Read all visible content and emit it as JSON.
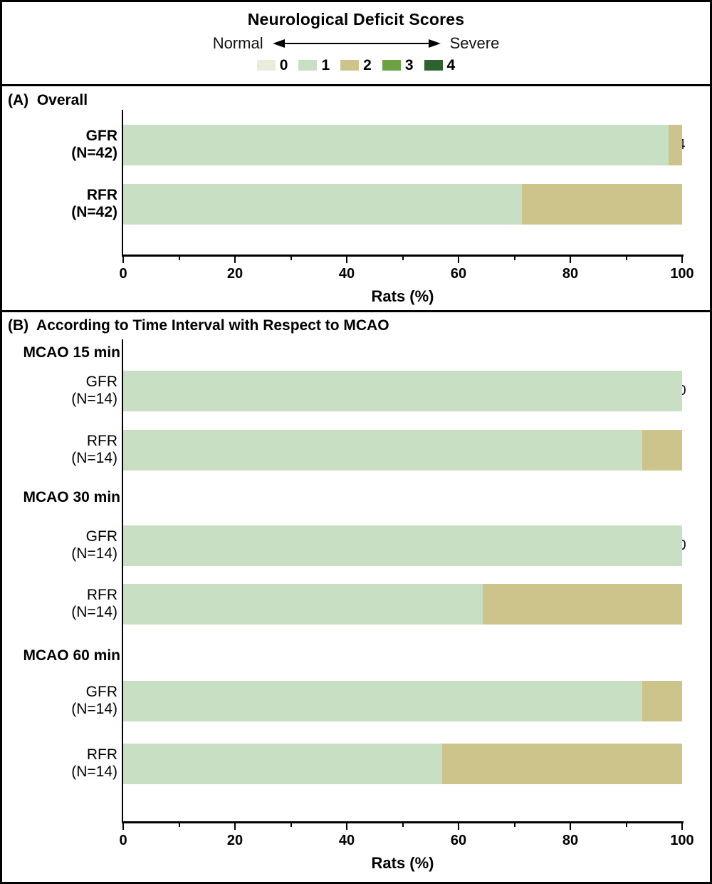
{
  "figure": {
    "title": "Neurological Deficit Scores",
    "scale_left": "Normal",
    "scale_right": "Severe",
    "legend": [
      {
        "score": "0",
        "color": "#e9ecdc"
      },
      {
        "score": "1",
        "color": "#c8dfc4"
      },
      {
        "score": "2",
        "color": "#ccc48b"
      },
      {
        "score": "3",
        "color": "#6aa244"
      },
      {
        "score": "4",
        "color": "#2e622f"
      }
    ]
  },
  "chart_data": [
    {
      "type": "bar",
      "orientation": "horizontal-stacked",
      "panel": "A",
      "title": "(A)  Overall",
      "xlabel": "Rats (%)",
      "xlim": [
        0,
        100
      ],
      "xticks": [
        0,
        20,
        40,
        60,
        80,
        100
      ],
      "minor_tick_step": 10,
      "series_labels": [
        "Score 1",
        "Score 2"
      ],
      "segment_colors": [
        "#c8dfc4",
        "#ccc48b"
      ],
      "rows": [
        {
          "label": "GFR",
          "sublabel": "(N=42)",
          "values": [
            97.6,
            2.4
          ],
          "value_labels": [
            "97.6",
            "2.4"
          ]
        },
        {
          "label": "RFR",
          "sublabel": "(N=42)",
          "values": [
            71.4,
            28.6
          ],
          "value_labels": [
            "71.4",
            "28.6"
          ]
        }
      ]
    },
    {
      "type": "bar",
      "orientation": "horizontal-stacked",
      "panel": "B",
      "title": "(B)  According to Time Interval with Respect to MCAO",
      "xlabel": "Rats (%)",
      "xlim": [
        0,
        100
      ],
      "xticks": [
        0,
        20,
        40,
        60,
        80,
        100
      ],
      "minor_tick_step": 10,
      "series_labels": [
        "Score 1",
        "Score 2"
      ],
      "segment_colors": [
        "#c8dfc4",
        "#ccc48b"
      ],
      "groups": [
        {
          "label": "MCAO 15 min",
          "rows": [
            {
              "label": "GFR",
              "sublabel": "(N=14)",
              "values": [
                100,
                0
              ],
              "value_labels": [
                "100",
                "0"
              ]
            },
            {
              "label": "RFR",
              "sublabel": "(N=14)",
              "values": [
                92.9,
                7.1
              ],
              "value_labels": [
                "92.9",
                "7.1"
              ]
            }
          ]
        },
        {
          "label": "MCAO 30 min",
          "rows": [
            {
              "label": "GFR",
              "sublabel": "(N=14)",
              "values": [
                100,
                0
              ],
              "value_labels": [
                "100",
                "0"
              ]
            },
            {
              "label": "RFR",
              "sublabel": "(N=14)",
              "values": [
                64.3,
                35.7
              ],
              "value_labels": [
                "64.3",
                "35.7"
              ]
            }
          ]
        },
        {
          "label": "MCAO 60 min",
          "rows": [
            {
              "label": "GFR",
              "sublabel": "(N=14)",
              "values": [
                92.9,
                7.1
              ],
              "value_labels": [
                "92.9",
                "7.1"
              ]
            },
            {
              "label": "RFR",
              "sublabel": "(N=14)",
              "values": [
                57.1,
                42.9
              ],
              "value_labels": [
                "57.1",
                "42.9"
              ]
            }
          ]
        }
      ]
    }
  ]
}
